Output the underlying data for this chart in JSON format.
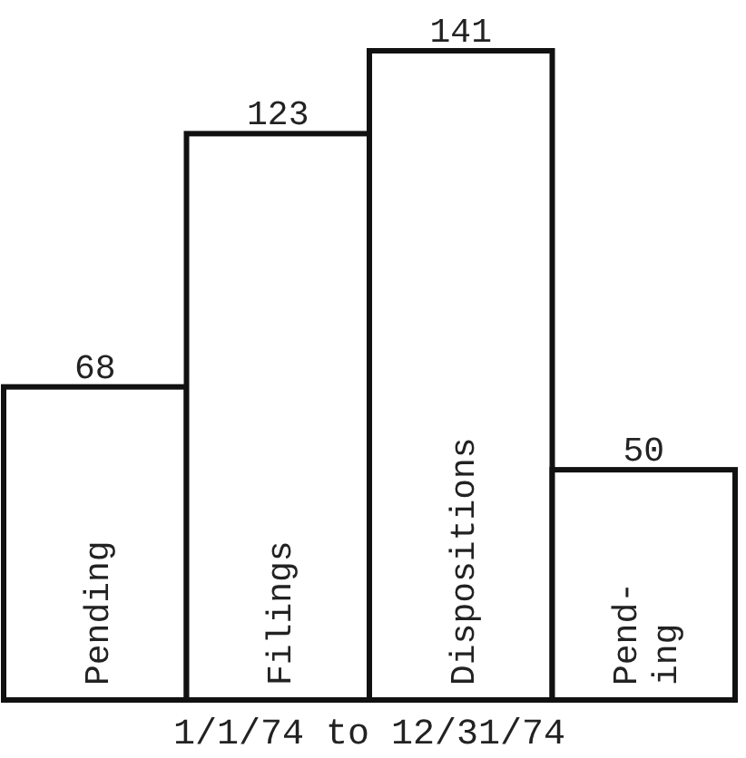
{
  "chart_data": {
    "type": "bar",
    "xlabel": "1/1/74 to 12/31/74",
    "categories": [
      "Pending",
      "Filings",
      "Dispositions",
      "Pend-\ning"
    ],
    "values": [
      68,
      123,
      141,
      50
    ],
    "color": "#ffffff",
    "data_labels": true
  }
}
